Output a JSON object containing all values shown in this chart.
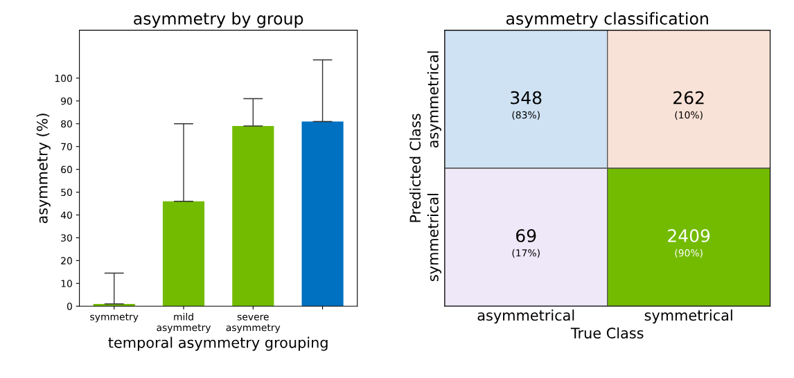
{
  "chart_data": [
    {
      "type": "bar",
      "title": "asymmetry by group",
      "xlabel": "temporal asymmetry grouping",
      "ylabel": "asymmetry (%)",
      "categories": [
        "symmetry",
        "mild\nasymmetry",
        "severe\nasymmetry",
        null
      ],
      "values": [
        1,
        46,
        79,
        81
      ],
      "errors": [
        [
          1,
          14.5
        ],
        [
          46,
          80
        ],
        [
          79,
          91
        ],
        [
          81,
          108
        ]
      ],
      "colors": [
        "#73bb00",
        "#73bb00",
        "#73bb00",
        "#0070c0"
      ],
      "ylim": [
        0,
        121
      ],
      "yticks": [
        0,
        10,
        20,
        30,
        40,
        50,
        60,
        70,
        80,
        90,
        100
      ],
      "grid": false
    },
    {
      "type": "heatmap",
      "title": "asymmetry classification",
      "xlabel": "True Class",
      "ylabel": "Predicted Class",
      "categories": [
        "asymmetrical",
        "symmetrical"
      ],
      "y_categories": [
        "asymmetrical",
        "symmetrical"
      ],
      "cells": [
        [
          348,
          262
        ],
        [
          69,
          2409
        ]
      ],
      "data_labels": true,
      "annotations": [
        "(83%)",
        "(10%)",
        "(17%)",
        "(90%)"
      ],
      "colors": [
        [
          "#cfe2f3",
          "#f8e1d6"
        ],
        [
          "#efe8f8",
          "#73bb00"
        ]
      ]
    }
  ]
}
